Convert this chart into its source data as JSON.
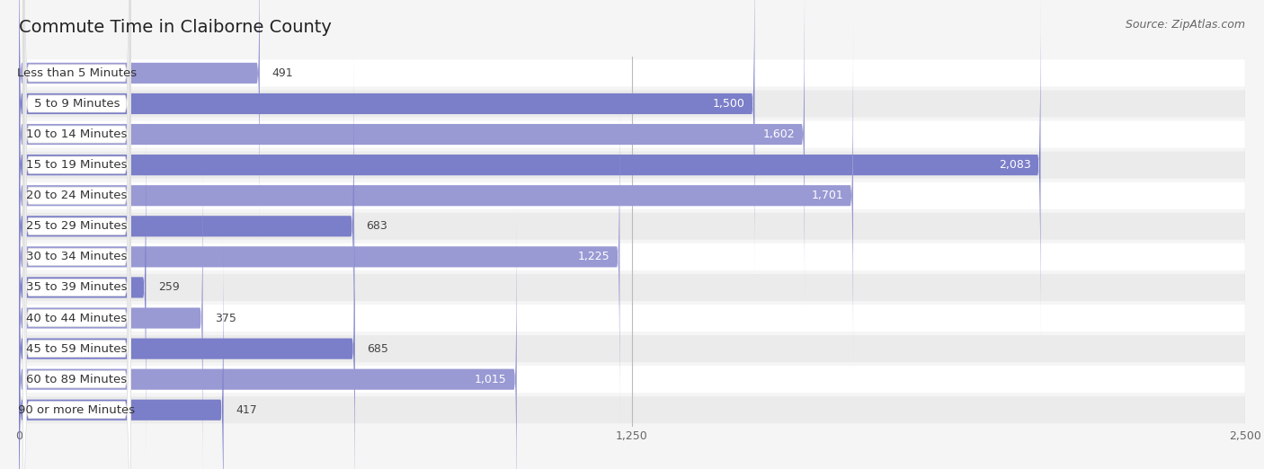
{
  "title": "Commute Time in Claiborne County",
  "source": "Source: ZipAtlas.com",
  "categories": [
    "Less than 5 Minutes",
    "5 to 9 Minutes",
    "10 to 14 Minutes",
    "15 to 19 Minutes",
    "20 to 24 Minutes",
    "25 to 29 Minutes",
    "30 to 34 Minutes",
    "35 to 39 Minutes",
    "40 to 44 Minutes",
    "45 to 59 Minutes",
    "60 to 89 Minutes",
    "90 or more Minutes"
  ],
  "values": [
    491,
    1500,
    1602,
    2083,
    1701,
    683,
    1225,
    259,
    375,
    685,
    1015,
    417
  ],
  "bar_color_dark": "#7b7ec8",
  "bar_color_light": "#9999d4",
  "row_bg_white": "#ffffff",
  "row_bg_gray": "#ebebeb",
  "label_bg": "#ffffff",
  "fig_bg": "#f5f5f5",
  "xlim": [
    0,
    2500
  ],
  "xticks": [
    0,
    1250,
    2500
  ],
  "title_fontsize": 14,
  "label_fontsize": 9.5,
  "value_fontsize": 9,
  "source_fontsize": 9,
  "tick_fontsize": 9
}
